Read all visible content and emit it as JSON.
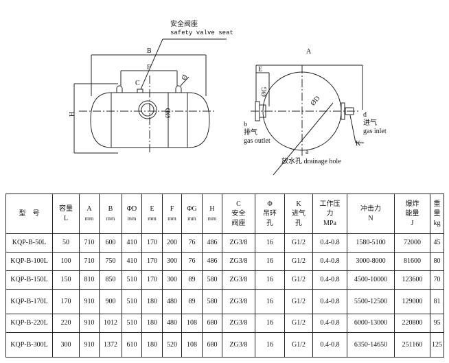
{
  "drawing": {
    "safety_valve_cn": "安全阀座",
    "safety_valve_en": "safety valve seat",
    "dim_B": "B",
    "dim_F": "F",
    "dim_C": "C",
    "dim_phi": "Ø",
    "dim_H": "H",
    "dim_D": "ØD",
    "dim_A": "A",
    "dim_E": "E",
    "dim_G": "ØG",
    "dim_D2": "ØD",
    "dim_K": "K",
    "outlet_letter": "b",
    "outlet_cn": "排气",
    "outlet_en": "gas outlet",
    "inlet_letter": "d",
    "inlet_cn": "进气",
    "inlet_en": "gas inlet",
    "drain_letter": "a",
    "drain_label": "放水孔 drainage hole"
  },
  "table": {
    "headers": [
      [
        "型　号"
      ],
      [
        "容量",
        "L"
      ],
      [
        "A",
        "mm"
      ],
      [
        "B",
        "mm"
      ],
      [
        "ΦD",
        "mm"
      ],
      [
        "E",
        "mm"
      ],
      [
        "F",
        "mm"
      ],
      [
        "ΦG",
        "mm"
      ],
      [
        "H",
        "mm"
      ],
      [
        "C",
        "安全",
        "阀座"
      ],
      [
        "Φ",
        "吊环",
        "孔"
      ],
      [
        "K",
        "进气",
        "孔"
      ],
      [
        "工作压",
        "力",
        "MPa"
      ],
      [
        "冲击力",
        "N"
      ],
      [
        "爆炸",
        "能量",
        "J"
      ],
      [
        "重",
        "量",
        "kg"
      ]
    ],
    "rows": [
      [
        "KQP-B-50L",
        "50",
        "710",
        "600",
        "410",
        "170",
        "200",
        "76",
        "486",
        "ZG3/8",
        "16",
        "G1/2",
        "0.4-0.8",
        "1580-5100",
        "72000",
        "45"
      ],
      [
        "KQP-B-100L",
        "100",
        "710",
        "750",
        "410",
        "170",
        "300",
        "76",
        "486",
        "ZG3/8",
        "16",
        "G1/2",
        "0.4-0.8",
        "3000-8000",
        "81600",
        "80"
      ],
      [
        "KQP-B-150L",
        "150",
        "810",
        "850",
        "510",
        "170",
        "300",
        "89",
        "580",
        "ZG3/8",
        "16",
        "G1/2",
        "0.4-0.8",
        "4500-10000",
        "123600",
        "70"
      ],
      [
        "KQP-B-170L",
        "170",
        "910",
        "900",
        "510",
        "180",
        "480",
        "89",
        "580",
        "ZG3/8",
        "16",
        "G1/2",
        "0.4-0.8",
        "5500-12500",
        "129000",
        "81"
      ],
      [
        "KQP-B-220L",
        "220",
        "910",
        "1012",
        "510",
        "180",
        "480",
        "108",
        "680",
        "ZG3/8",
        "16",
        "G1/2",
        "0.4-0.8",
        "6000-13000",
        "220800",
        "95"
      ],
      [
        "KQP-B-300L",
        "300",
        "910",
        "1372",
        "610",
        "180",
        "520",
        "108",
        "680",
        "ZG3/8",
        "16",
        "G1/2",
        "0.4-0.8",
        "6350-14650",
        "251160",
        "125"
      ]
    ]
  }
}
